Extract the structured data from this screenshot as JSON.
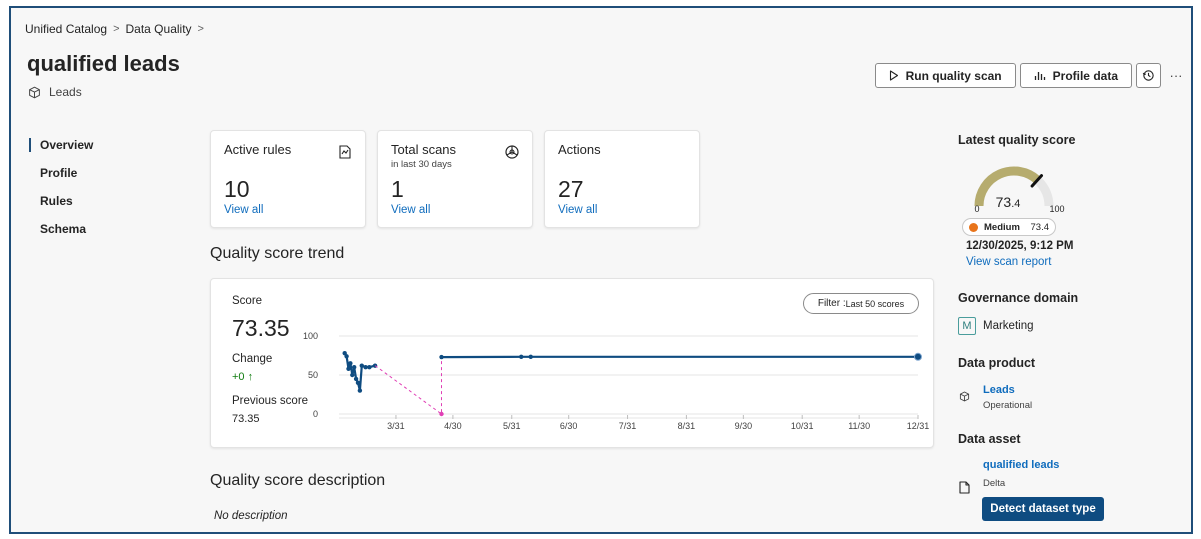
{
  "breadcrumb": {
    "item1": "Unified Catalog",
    "item2": "Data Quality",
    "sep": ">"
  },
  "title": "qualified leads",
  "subtitle": {
    "icon": "cube-icon",
    "label": "Leads"
  },
  "toolbar": {
    "run_scan": "Run quality scan",
    "profile": "Profile data",
    "history_icon": "history-icon",
    "more": "···"
  },
  "nav": {
    "items": [
      "Overview",
      "Profile",
      "Rules",
      "Schema"
    ],
    "active": "Overview"
  },
  "stats": {
    "active_rules": {
      "title": "Active rules",
      "value": "10",
      "link": "View all",
      "icon": "rules-icon"
    },
    "total_scans": {
      "title": "Total scans",
      "sub": "in last 30 days",
      "value": "1",
      "link": "View all",
      "icon": "scan-icon"
    },
    "actions": {
      "title": "Actions",
      "value": "27",
      "link": "View all"
    }
  },
  "trend": {
    "heading": "Quality score trend",
    "score_label": "Score",
    "score": "73.35",
    "change_label": "Change",
    "change": "+0 ↑",
    "prev_label": "Previous score",
    "prev": "73.35",
    "filter": "Filter : Last 50 scores",
    "filter_prefix": "Filter : ",
    "filter_value": "Last 50 scores"
  },
  "chart_data": {
    "type": "line",
    "title": "Quality score trend",
    "xlabel": "",
    "ylabel": "",
    "ylim": [
      0,
      100
    ],
    "yticks": [
      "100",
      "50",
      "0"
    ],
    "x_ticks": [
      "3/31",
      "4/30",
      "5/31",
      "6/30",
      "7/31",
      "8/31",
      "9/30",
      "10/31",
      "11/30",
      "12/31"
    ],
    "grid": true,
    "series": [
      {
        "style": "solid",
        "color": "#0f4c81",
        "points": [
          [
            "3/4",
            78
          ],
          [
            "3/5",
            74
          ],
          [
            "3/6",
            58
          ],
          [
            "3/7",
            65
          ],
          [
            "3/8",
            50
          ],
          [
            "3/9",
            60
          ],
          [
            "3/10",
            45
          ],
          [
            "3/11",
            40
          ],
          [
            "3/12",
            30
          ],
          [
            "3/13",
            62
          ],
          [
            "3/15",
            60
          ],
          [
            "3/17",
            60
          ],
          [
            "3/20",
            62
          ]
        ]
      },
      {
        "style": "dashed",
        "color": "#e03fb5",
        "points": [
          [
            "3/20",
            62
          ],
          [
            "4/24",
            0
          ],
          [
            "4/24",
            73
          ]
        ]
      },
      {
        "style": "solid",
        "color": "#0f4c81",
        "points": [
          [
            "4/24",
            73
          ],
          [
            "6/5",
            73.35
          ],
          [
            "6/10",
            73.35
          ],
          [
            "12/31",
            73.35
          ]
        ]
      }
    ]
  },
  "description": {
    "heading": "Quality score description",
    "text": "No description"
  },
  "right": {
    "latest_heading": "Latest quality score",
    "gauge": {
      "value": 73.4,
      "display_main": "73",
      "display_dec": ".4",
      "min": "0",
      "max": "100",
      "fill": "#b6ac6e",
      "track": "#e6e6e6"
    },
    "badge": {
      "label": "Medium",
      "value": "73.4",
      "color": "#e8741b"
    },
    "date": "12/30/2025, 9:12 PM",
    "scan_report": "View scan report",
    "gov_heading": "Governance domain",
    "domain_letter": "M",
    "domain_name": "Marketing",
    "product_heading": "Data product",
    "product_name": "Leads",
    "product_status": "Operational",
    "asset_heading": "Data asset",
    "asset_name": "qualified leads",
    "asset_type": "Delta",
    "detect_btn": "Detect dataset type"
  },
  "colors": {
    "accent": "#0f6cbd",
    "primary_btn": "#0f4c81",
    "line": "#0f4c81",
    "dashed": "#e03fb5"
  }
}
